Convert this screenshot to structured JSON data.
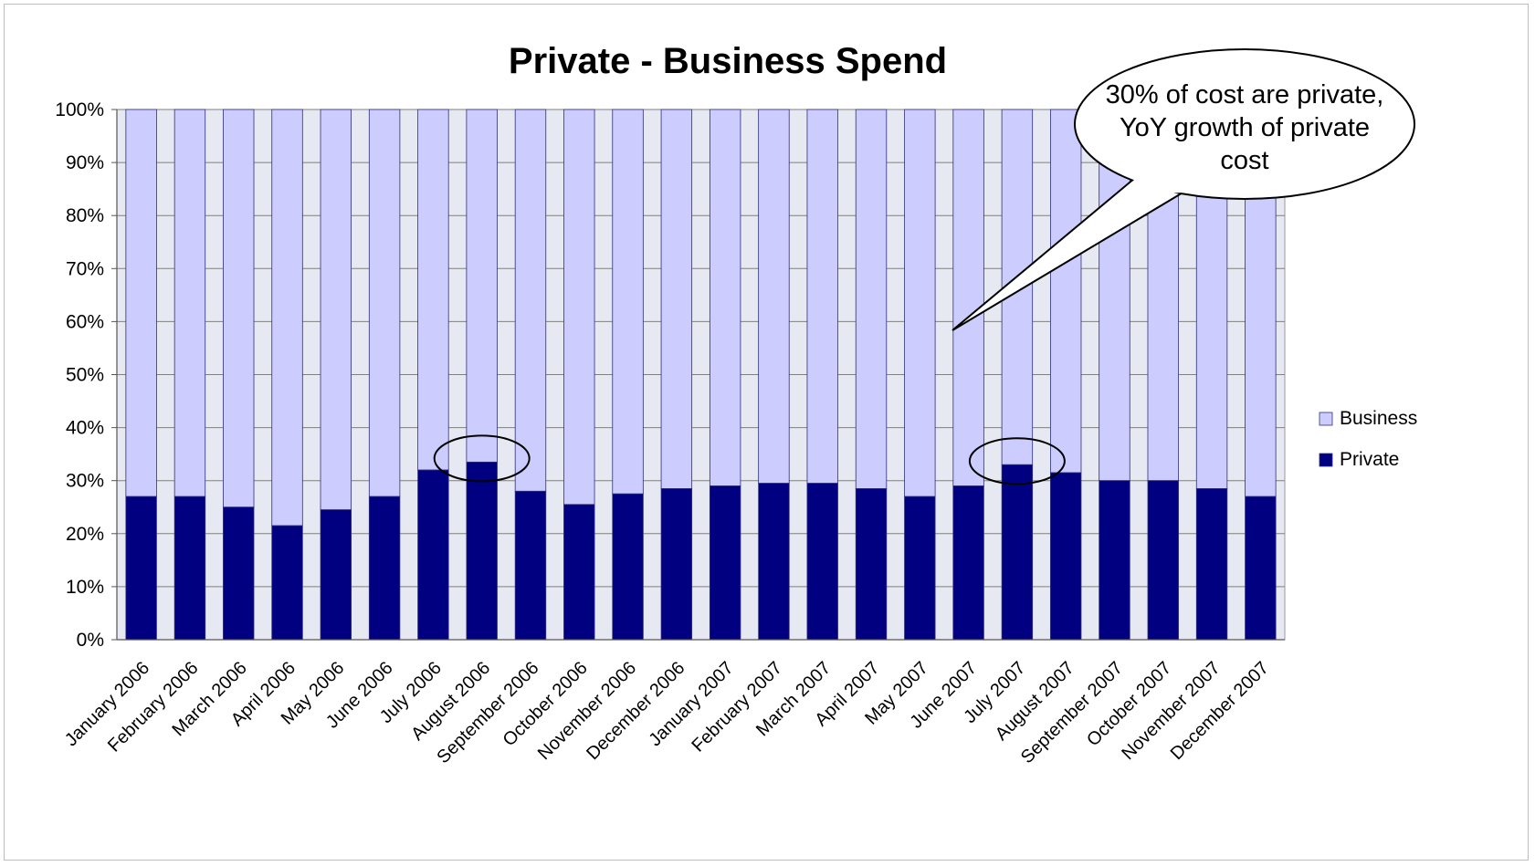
{
  "chart_data": {
    "type": "bar",
    "stacked": true,
    "percent": true,
    "title": "Private - Business Spend",
    "xlabel": "",
    "ylabel": "",
    "ylim": [
      0,
      100
    ],
    "yticks": [
      "0%",
      "10%",
      "20%",
      "30%",
      "40%",
      "50%",
      "60%",
      "70%",
      "80%",
      "90%",
      "100%"
    ],
    "grid": true,
    "legend_position": "right",
    "categories": [
      "January 2006",
      "February 2006",
      "March 2006",
      "April 2006",
      "May 2006",
      "June 2006",
      "July 2006",
      "August 2006",
      "September 2006",
      "October 2006",
      "November 2006",
      "December 2006",
      "January 2007",
      "February 2007",
      "March 2007",
      "April 2007",
      "May 2007",
      "June 2007",
      "July 2007",
      "August 2007",
      "September 2007",
      "October 2007",
      "November 2007",
      "December 2007"
    ],
    "series": [
      {
        "name": "Private",
        "color": "#000080",
        "values": [
          27,
          27,
          25,
          21.5,
          24.5,
          27,
          32,
          33.5,
          28,
          25.5,
          27.5,
          28.5,
          29,
          29.5,
          29.5,
          28.5,
          27,
          29,
          33,
          31.5,
          30,
          30,
          28.5,
          27
        ]
      },
      {
        "name": "Business",
        "color": "#ccccff",
        "values": [
          73,
          73,
          75,
          78.5,
          75.5,
          73,
          68,
          66.5,
          72,
          74.5,
          72.5,
          71.5,
          71,
          70.5,
          70.5,
          71.5,
          73,
          71,
          67,
          68.5,
          70,
          70,
          71.5,
          73
        ]
      }
    ],
    "annotations": [
      {
        "type": "callout",
        "lines": [
          "30% of cost are private,",
          "YoY growth of private",
          "cost"
        ]
      },
      {
        "type": "ellipse",
        "category": "August 2006"
      },
      {
        "type": "ellipse",
        "category": "July 2007"
      }
    ],
    "colors": {
      "plot_background": "#e6e8f2",
      "gridline": "#808080",
      "bar_outline": "#2f2f7a"
    }
  }
}
